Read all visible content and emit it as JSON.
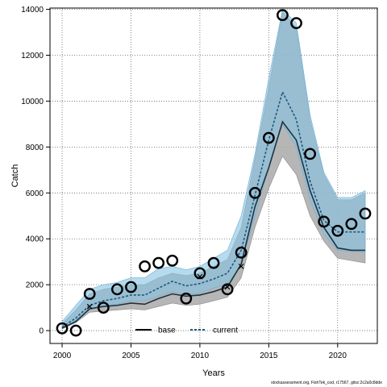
{
  "footer_text": "stockassessment.org, FishTek_cod, r17567, gitsc:2c2a0c8dde",
  "chart_data": {
    "type": "line",
    "title": "",
    "xlabel": "Years",
    "ylabel": "Catch",
    "xlim": [
      2000,
      2022
    ],
    "ylim": [
      0,
      14000
    ],
    "xticks": [
      2000,
      2005,
      2010,
      2015,
      2020
    ],
    "yticks": [
      0,
      2000,
      4000,
      6000,
      8000,
      10000,
      12000,
      14000
    ],
    "grid": true,
    "legend_position": "bottom-center",
    "x": [
      2000,
      2001,
      2002,
      2003,
      2004,
      2005,
      2006,
      2007,
      2008,
      2009,
      2010,
      2011,
      2012,
      2013,
      2014,
      2015,
      2016,
      2017,
      2018,
      2019,
      2020,
      2021,
      2022
    ],
    "series": [
      {
        "name": "base",
        "style": "solid",
        "color": "#1f3340",
        "values": [
          100,
          400,
          950,
          1050,
          1100,
          1200,
          1150,
          1400,
          1600,
          1500,
          1550,
          1700,
          1900,
          2900,
          5400,
          7100,
          9100,
          8300,
          6100,
          4500,
          3600,
          3500,
          3500
        ],
        "lower": [
          80,
          350,
          800,
          850,
          900,
          950,
          900,
          1050,
          1200,
          1100,
          1150,
          1300,
          1450,
          2300,
          4500,
          6200,
          7600,
          6800,
          5000,
          3900,
          3150,
          3050,
          2950
        ],
        "upper": [
          300,
          900,
          1600,
          1800,
          1900,
          2000,
          2000,
          2300,
          2500,
          2400,
          2500,
          2800,
          3100,
          4500,
          7500,
          10600,
          13900,
          13200,
          9200,
          6800,
          5700,
          5700,
          6000
        ]
      },
      {
        "name": "current",
        "style": "dashed",
        "color": "#1a5a80",
        "values": [
          150,
          550,
          1100,
          1300,
          1400,
          1550,
          1550,
          1850,
          2150,
          1950,
          2050,
          2250,
          2500,
          3500,
          5900,
          8300,
          10400,
          9200,
          6500,
          4800,
          4300,
          4300,
          4300
        ],
        "lower": [
          100,
          450,
          950,
          1100,
          1150,
          1300,
          1300,
          1500,
          1700,
          1550,
          1650,
          1850,
          2050,
          2850,
          5000,
          7100,
          9000,
          8000,
          5700,
          4200,
          3500,
          3450,
          3400
        ],
        "upper": [
          400,
          1100,
          1800,
          2000,
          2100,
          2300,
          2300,
          2700,
          2800,
          2650,
          2800,
          3150,
          3500,
          5000,
          7700,
          11000,
          14000,
          13400,
          9400,
          6900,
          5800,
          5800,
          6100
        ]
      }
    ],
    "observed": {
      "x": [
        2000,
        2001,
        2002,
        2003,
        2004,
        2005,
        2006,
        2007,
        2008,
        2009,
        2010,
        2011,
        2012,
        2013,
        2014,
        2015,
        2016,
        2017,
        2018,
        2019,
        2020,
        2021,
        2022
      ],
      "values": [
        100,
        0,
        1600,
        1000,
        1800,
        1900,
        2800,
        2950,
        3050,
        1400,
        2500,
        2950,
        1800,
        3400,
        6000,
        8400,
        13750,
        13400,
        7700,
        4750,
        4350,
        4650,
        5100
      ],
      "marker": "open-circle"
    },
    "crosses": {
      "x": [
        2002,
        2010,
        2012,
        2013
      ],
      "values": [
        1050,
        2350,
        1900,
        2800
      ],
      "marker": "x"
    },
    "colors": {
      "base_band": "#a9a9a9",
      "current_band": "#87c3e3",
      "overlap_band": "#8fb0c6"
    }
  }
}
